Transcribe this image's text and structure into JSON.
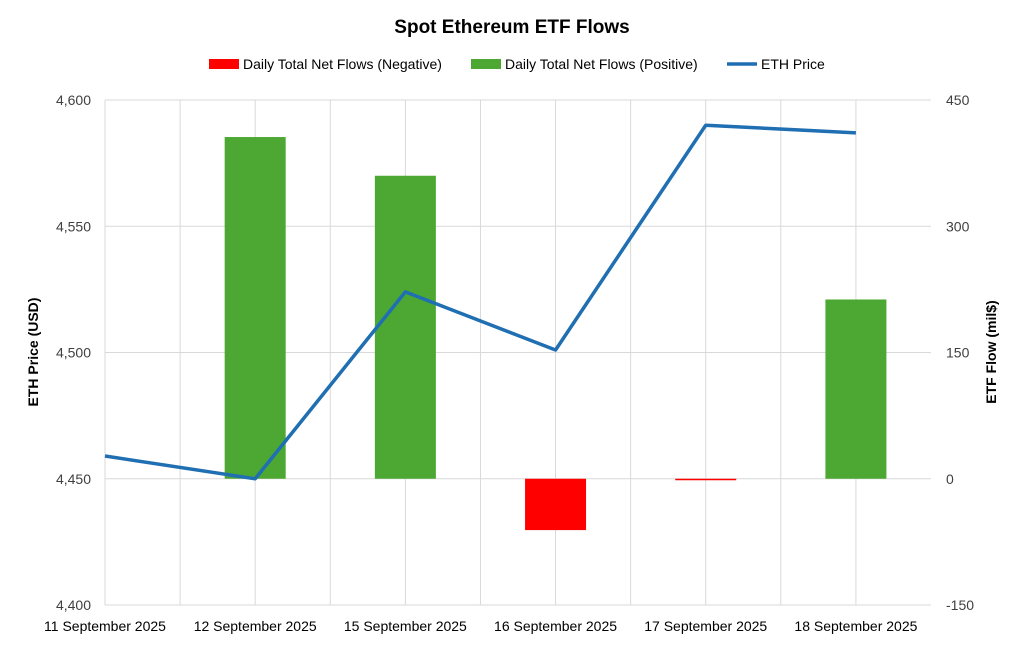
{
  "chart_data": {
    "type": "bar+line",
    "title": "Spot Ethereum ETF Flows",
    "categories": [
      "11 September 2025",
      "12 September 2025",
      "15 September 2025",
      "16 September 2025",
      "17 September 2025",
      "18 September 2025"
    ],
    "series": [
      {
        "name": "Daily Total Net Flows (Negative)",
        "kind": "bar",
        "axis": "right",
        "color": "#ff0000",
        "values": [
          0,
          0,
          0,
          -61,
          -1,
          0
        ]
      },
      {
        "name": "Daily Total Net Flows (Positive)",
        "kind": "bar",
        "axis": "right",
        "color": "#4ca832",
        "values": [
          0,
          406,
          360,
          0,
          0,
          213
        ]
      },
      {
        "name": "ETH Price",
        "kind": "line",
        "axis": "left",
        "color": "#1f6fb2",
        "values": [
          4459,
          4450,
          4524,
          4501,
          4590,
          4587
        ]
      }
    ],
    "y_left": {
      "label": "ETH Price (USD)",
      "min": 4400,
      "max": 4600,
      "ticks": [
        4400,
        4450,
        4500,
        4550,
        4600
      ],
      "tick_labels": [
        "4,400",
        "4,450",
        "4,500",
        "4,550",
        "4,600"
      ]
    },
    "y_right": {
      "label": "ETF Flow (mil$)",
      "min": -150,
      "max": 450,
      "ticks": [
        -150,
        0,
        150,
        300,
        450
      ],
      "tick_labels": [
        "-150",
        "0",
        "150",
        "300",
        "450"
      ]
    },
    "grid": true,
    "legend_position": "top"
  }
}
